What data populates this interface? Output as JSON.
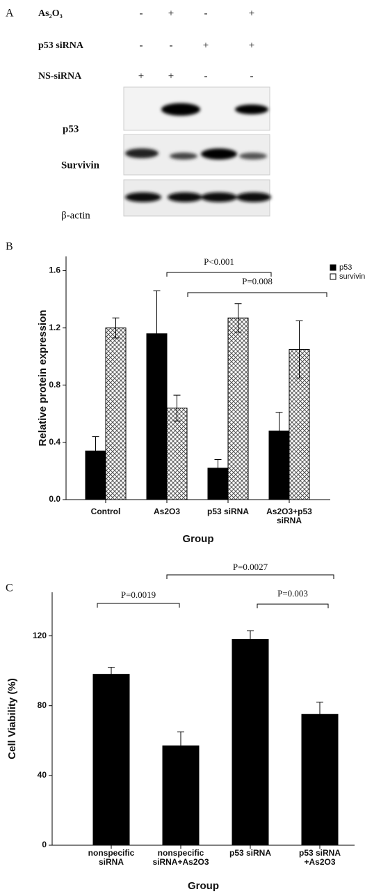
{
  "panel_a": {
    "label": "A",
    "rows": [
      {
        "name": "As₂O₃",
        "signs": [
          "-",
          "+",
          "-",
          "+"
        ]
      },
      {
        "name": "p53 siRNA",
        "signs": [
          "-",
          "-",
          "+",
          "+"
        ]
      },
      {
        "name": "NS-siRNA",
        "signs": [
          "+",
          "+",
          "-",
          "-"
        ]
      }
    ],
    "blots": [
      "p53",
      "Survivin",
      "β-actin"
    ]
  },
  "chart_data": [
    {
      "type": "bar",
      "panel": "B",
      "ylabel": "Relative protein expression",
      "xlabel": "Group",
      "categories": [
        [
          "Control"
        ],
        [
          "As2O3"
        ],
        [
          "p53 siRNA"
        ],
        [
          "As2O3+p53",
          "siRNA"
        ]
      ],
      "series": [
        {
          "name": "p53",
          "color": "#000000",
          "values": [
            0.34,
            1.16,
            0.22,
            0.48
          ],
          "errors": [
            0.1,
            0.3,
            0.06,
            0.13
          ]
        },
        {
          "name": "survivin",
          "color": "#ffffff",
          "values": [
            1.2,
            0.64,
            1.27,
            1.05
          ],
          "errors": [
            0.07,
            0.09,
            0.1,
            0.2
          ]
        }
      ],
      "ylim": [
        0,
        1.7
      ],
      "yticks": [
        {
          "value": 0,
          "label": "0.0"
        },
        0.4,
        0.8,
        1.2,
        1.6
      ],
      "annotations": [
        "P<0.001",
        "P=0.008"
      ]
    },
    {
      "type": "bar",
      "panel": "C",
      "ylabel": "Cell Viability (%)",
      "xlabel": "Group",
      "categories": [
        [
          "nonspecific",
          "siRNA"
        ],
        [
          "nonspecific",
          "siRNA+As2O3"
        ],
        [
          "p53 siRNA"
        ],
        [
          "p53 siRNA",
          "+As2O3"
        ]
      ],
      "series": [
        {
          "name": null,
          "color": "#000000",
          "values": [
            98,
            57,
            118,
            75
          ],
          "errors": [
            4,
            8,
            5,
            7
          ]
        }
      ],
      "ylim": [
        0,
        145
      ],
      "yticks": [
        0,
        40,
        80,
        120
      ],
      "annotations": [
        "P=0.0019",
        "P=0.0027",
        "P=0.003"
      ]
    }
  ]
}
